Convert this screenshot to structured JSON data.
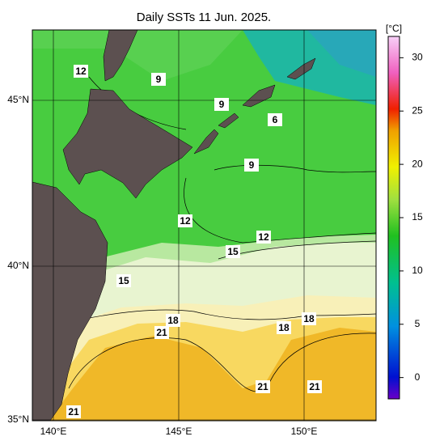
{
  "title": "Daily SSTs 11 Jun. 2025.",
  "lat_labels": [
    "45°N",
    "40°N",
    "35°N"
  ],
  "lon_labels": [
    "140°E",
    "145°E",
    "150°E"
  ],
  "colorbar": {
    "unit": "[°C]",
    "range": [
      -2,
      32
    ],
    "ticks": [
      0,
      5,
      10,
      15,
      20,
      25,
      30
    ]
  },
  "contour_labels": [
    12,
    9,
    9,
    6,
    9,
    12,
    12,
    15,
    15,
    18,
    21,
    18,
    18,
    21,
    21,
    21
  ]
}
